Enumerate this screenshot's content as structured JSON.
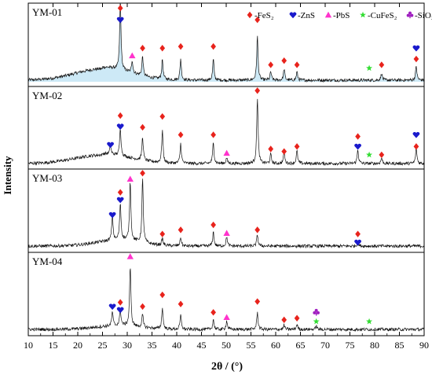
{
  "chart_data": {
    "type": "line",
    "xlabel": "2θ / (°)",
    "ylabel": "Intensity",
    "xlim": [
      10,
      90
    ],
    "xticks": [
      10,
      15,
      20,
      25,
      30,
      35,
      40,
      45,
      50,
      55,
      60,
      65,
      70,
      75,
      80,
      85,
      90
    ],
    "grid": false,
    "legend_position": "top-right",
    "legend": [
      {
        "key": "FeS2",
        "label": "-FeS₂",
        "marker": "diamond",
        "color": "#e8231c"
      },
      {
        "key": "ZnS",
        "label": "-ZnS",
        "marker": "heart",
        "color": "#1a1acc"
      },
      {
        "key": "PbS",
        "label": "-PbS",
        "marker": "triangle",
        "color": "#ff33cc"
      },
      {
        "key": "CuFeS2",
        "label": "-CuFeS₂",
        "marker": "star",
        "color": "#33dd33"
      },
      {
        "key": "SiO2",
        "label": "-SiO₂",
        "marker": "club",
        "color": "#a020c0"
      }
    ],
    "panels": [
      {
        "name": "YM-01",
        "fill": "#cde9f6",
        "hump": {
          "center": 25,
          "width": 5.5,
          "height": 0.16
        },
        "peaks": [
          {
            "x": 28.6,
            "h": 0.98
          },
          {
            "x": 31.0,
            "h": 0.18
          },
          {
            "x": 33.1,
            "h": 0.28
          },
          {
            "x": 37.1,
            "h": 0.28
          },
          {
            "x": 40.8,
            "h": 0.3
          },
          {
            "x": 47.4,
            "h": 0.3
          },
          {
            "x": 56.3,
            "h": 0.62
          },
          {
            "x": 59.0,
            "h": 0.12
          },
          {
            "x": 61.7,
            "h": 0.16
          },
          {
            "x": 64.3,
            "h": 0.12
          },
          {
            "x": 81.4,
            "h": 0.1
          },
          {
            "x": 88.4,
            "h": 0.2
          }
        ],
        "markers": [
          {
            "x": 28.6,
            "type": "FeS2",
            "level": 0.94
          },
          {
            "x": 28.6,
            "type": "ZnS",
            "level": 0.8
          },
          {
            "x": 31.0,
            "type": "PbS",
            "level": 0.37
          },
          {
            "x": 33.1,
            "type": "FeS2",
            "level": 0.46
          },
          {
            "x": 37.1,
            "type": "FeS2",
            "level": 0.46
          },
          {
            "x": 40.8,
            "type": "FeS2",
            "level": 0.48
          },
          {
            "x": 47.4,
            "type": "FeS2",
            "level": 0.48
          },
          {
            "x": 56.3,
            "type": "FeS2",
            "level": 0.8
          },
          {
            "x": 59.0,
            "type": "FeS2",
            "level": 0.26
          },
          {
            "x": 61.7,
            "type": "FeS2",
            "level": 0.31
          },
          {
            "x": 64.3,
            "type": "FeS2",
            "level": 0.26
          },
          {
            "x": 78.9,
            "type": "CuFeS2",
            "level": 0.22
          },
          {
            "x": 81.4,
            "type": "FeS2",
            "level": 0.26
          },
          {
            "x": 88.4,
            "type": "ZnS",
            "level": 0.46
          },
          {
            "x": 88.4,
            "type": "FeS2",
            "level": 0.33
          }
        ]
      },
      {
        "name": "YM-02",
        "fill": "#ffffff",
        "hump": {
          "center": 25,
          "width": 5.5,
          "height": 0.12
        },
        "peaks": [
          {
            "x": 26.6,
            "h": 0.12
          },
          {
            "x": 28.6,
            "h": 0.4
          },
          {
            "x": 33.1,
            "h": 0.33
          },
          {
            "x": 37.1,
            "h": 0.46
          },
          {
            "x": 40.8,
            "h": 0.28
          },
          {
            "x": 47.4,
            "h": 0.3
          },
          {
            "x": 50.1,
            "h": 0.08
          },
          {
            "x": 56.3,
            "h": 0.94
          },
          {
            "x": 59.0,
            "h": 0.13
          },
          {
            "x": 61.7,
            "h": 0.16
          },
          {
            "x": 64.3,
            "h": 0.18
          },
          {
            "x": 76.6,
            "h": 0.2
          },
          {
            "x": 81.4,
            "h": 0.08
          },
          {
            "x": 88.4,
            "h": 0.22
          }
        ],
        "markers": [
          {
            "x": 26.6,
            "type": "ZnS",
            "level": 0.3
          },
          {
            "x": 28.6,
            "type": "FeS2",
            "level": 0.65
          },
          {
            "x": 28.6,
            "type": "ZnS",
            "level": 0.52
          },
          {
            "x": 33.1,
            "type": "FeS2",
            "level": 0.51
          },
          {
            "x": 37.1,
            "type": "FeS2",
            "level": 0.64
          },
          {
            "x": 40.8,
            "type": "FeS2",
            "level": 0.42
          },
          {
            "x": 47.4,
            "type": "FeS2",
            "level": 0.42
          },
          {
            "x": 50.1,
            "type": "PbS",
            "level": 0.2
          },
          {
            "x": 56.3,
            "type": "FeS2",
            "level": 0.95
          },
          {
            "x": 59.0,
            "type": "FeS2",
            "level": 0.25
          },
          {
            "x": 61.7,
            "type": "FeS2",
            "level": 0.22
          },
          {
            "x": 64.3,
            "type": "FeS2",
            "level": 0.28
          },
          {
            "x": 76.6,
            "type": "FeS2",
            "level": 0.4
          },
          {
            "x": 76.6,
            "type": "ZnS",
            "level": 0.28
          },
          {
            "x": 78.9,
            "type": "CuFeS2",
            "level": 0.18
          },
          {
            "x": 81.4,
            "type": "FeS2",
            "level": 0.18
          },
          {
            "x": 88.4,
            "type": "ZnS",
            "level": 0.42
          },
          {
            "x": 88.4,
            "type": "FeS2",
            "level": 0.28
          }
        ]
      },
      {
        "name": "YM-03",
        "fill": "#ffffff",
        "hump": {
          "center": 28,
          "width": 4.5,
          "height": 0.08
        },
        "peaks": [
          {
            "x": 27.0,
            "h": 0.36
          },
          {
            "x": 28.6,
            "h": 0.52
          },
          {
            "x": 30.6,
            "h": 0.84
          },
          {
            "x": 33.1,
            "h": 0.9
          },
          {
            "x": 37.1,
            "h": 0.1
          },
          {
            "x": 40.8,
            "h": 0.12
          },
          {
            "x": 47.4,
            "h": 0.2
          },
          {
            "x": 50.1,
            "h": 0.13
          },
          {
            "x": 56.3,
            "h": 0.16
          },
          {
            "x": 76.6,
            "h": 0.06
          }
        ],
        "markers": [
          {
            "x": 27.0,
            "type": "ZnS",
            "level": 0.45
          },
          {
            "x": 28.6,
            "type": "FeS2",
            "level": 0.72
          },
          {
            "x": 28.6,
            "type": "ZnS",
            "level": 0.63
          },
          {
            "x": 30.6,
            "type": "PbS",
            "level": 0.88
          },
          {
            "x": 33.1,
            "type": "FeS2",
            "level": 0.95
          },
          {
            "x": 37.1,
            "type": "FeS2",
            "level": 0.22
          },
          {
            "x": 40.8,
            "type": "FeS2",
            "level": 0.27
          },
          {
            "x": 47.4,
            "type": "FeS2",
            "level": 0.33
          },
          {
            "x": 50.1,
            "type": "PbS",
            "level": 0.23
          },
          {
            "x": 56.3,
            "type": "FeS2",
            "level": 0.27
          },
          {
            "x": 76.6,
            "type": "FeS2",
            "level": 0.22
          },
          {
            "x": 76.6,
            "type": "ZnS",
            "level": 0.12
          }
        ]
      },
      {
        "name": "YM-04",
        "fill": "#ffffff",
        "hump": {
          "center": 28,
          "width": 4.5,
          "height": 0.05
        },
        "peaks": [
          {
            "x": 27.0,
            "h": 0.2
          },
          {
            "x": 28.6,
            "h": 0.22
          },
          {
            "x": 30.6,
            "h": 0.84
          },
          {
            "x": 33.1,
            "h": 0.18
          },
          {
            "x": 37.1,
            "h": 0.3
          },
          {
            "x": 40.8,
            "h": 0.2
          },
          {
            "x": 47.4,
            "h": 0.14
          },
          {
            "x": 50.1,
            "h": 0.12
          },
          {
            "x": 56.3,
            "h": 0.24
          },
          {
            "x": 61.7,
            "h": 0.06
          },
          {
            "x": 64.3,
            "h": 0.07
          },
          {
            "x": 68.2,
            "h": 0.05
          }
        ],
        "markers": [
          {
            "x": 27.0,
            "type": "ZnS",
            "level": 0.35
          },
          {
            "x": 28.6,
            "type": "FeS2",
            "level": 0.4
          },
          {
            "x": 28.6,
            "type": "ZnS",
            "level": 0.31
          },
          {
            "x": 30.6,
            "type": "PbS",
            "level": 0.95
          },
          {
            "x": 33.1,
            "type": "FeS2",
            "level": 0.35
          },
          {
            "x": 37.1,
            "type": "FeS2",
            "level": 0.49
          },
          {
            "x": 40.8,
            "type": "FeS2",
            "level": 0.38
          },
          {
            "x": 47.4,
            "type": "FeS2",
            "level": 0.28
          },
          {
            "x": 50.1,
            "type": "PbS",
            "level": 0.22
          },
          {
            "x": 56.3,
            "type": "FeS2",
            "level": 0.41
          },
          {
            "x": 61.7,
            "type": "FeS2",
            "level": 0.19
          },
          {
            "x": 64.3,
            "type": "FeS2",
            "level": 0.21
          },
          {
            "x": 68.2,
            "type": "SiO2",
            "level": 0.28
          },
          {
            "x": 68.2,
            "type": "CuFeS2",
            "level": 0.17
          },
          {
            "x": 78.9,
            "type": "CuFeS2",
            "level": 0.17
          }
        ]
      }
    ]
  }
}
